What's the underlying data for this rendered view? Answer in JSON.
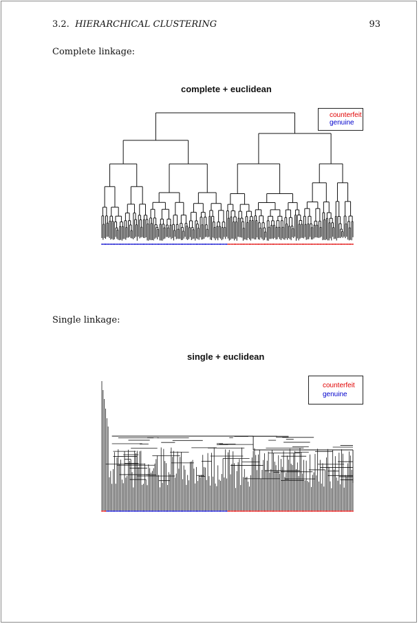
{
  "header": {
    "section_number": "3.2.",
    "section_title": "HIERARCHICAL CLUSTERING",
    "page_number": "93"
  },
  "figures": [
    {
      "label": "Complete linkage:",
      "title": "complete + euclidean",
      "legend": [
        "counterfeit",
        "genuine"
      ]
    },
    {
      "label": "Single linkage:",
      "title": "single + euclidean",
      "legend": [
        "counterfeit",
        "genuine"
      ]
    }
  ],
  "colors": {
    "counterfeit": "#e00000",
    "genuine": "#0000cc",
    "branches": "#111111"
  }
}
